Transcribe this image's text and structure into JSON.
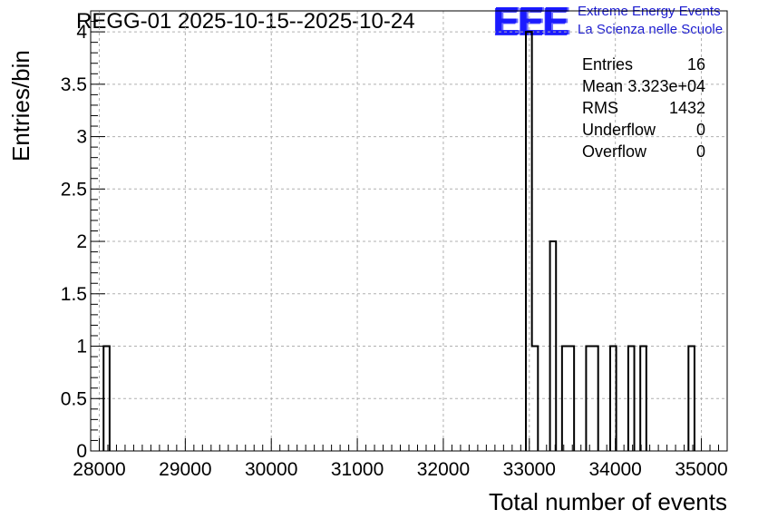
{
  "header": {
    "title": "REGG-01 2025-10-15--2025-10-24",
    "logo_text": "EEE",
    "logo_line1": "Extreme Energy Events",
    "logo_line2": "La Scienza nelle Scuole"
  },
  "stats_box": [
    {
      "label": "Entries",
      "value": "16"
    },
    {
      "label": "Mean",
      "value": "3.323e+04"
    },
    {
      "label": "RMS",
      "value": "1432"
    },
    {
      "label": "Underflow",
      "value": "0"
    },
    {
      "label": "Overflow",
      "value": "0"
    }
  ],
  "colors": {
    "logo": "#1a1aff",
    "grid": "#b0b0b0",
    "histogram": "#000000"
  },
  "chart_data": {
    "type": "bar",
    "title": "REGG-01 2025-10-15--2025-10-24",
    "xlabel": "Total number of events",
    "ylabel": "Entries/bin",
    "xlim": [
      27900,
      35300
    ],
    "ylim": [
      0,
      4.2
    ],
    "grid": true,
    "bin_width": 70,
    "x_ticks": [
      28000,
      29000,
      30000,
      31000,
      32000,
      33000,
      34000,
      35000
    ],
    "x_tick_labels": [
      "28000",
      "29000",
      "30000",
      "31000",
      "32000",
      "33000",
      "34000",
      "35000"
    ],
    "y_ticks": [
      0,
      0.5,
      1,
      1.5,
      2,
      2.5,
      3,
      3.5,
      4
    ],
    "y_tick_labels": [
      "0",
      "0.5",
      "1",
      "1.5",
      "2",
      "2.5",
      "3",
      "3.5",
      "4"
    ],
    "bins": [
      {
        "low": 28050,
        "high": 28120,
        "count": 1
      },
      {
        "low": 32960,
        "high": 33030,
        "count": 4
      },
      {
        "low": 33030,
        "high": 33100,
        "count": 1
      },
      {
        "low": 33240,
        "high": 33310,
        "count": 2
      },
      {
        "low": 33380,
        "high": 33450,
        "count": 1
      },
      {
        "low": 33450,
        "high": 33520,
        "count": 1
      },
      {
        "low": 33660,
        "high": 33730,
        "count": 1
      },
      {
        "low": 33730,
        "high": 33800,
        "count": 1
      },
      {
        "low": 33940,
        "high": 34010,
        "count": 1
      },
      {
        "low": 34150,
        "high": 34220,
        "count": 1
      },
      {
        "low": 34290,
        "high": 34360,
        "count": 1
      },
      {
        "low": 34850,
        "high": 34920,
        "count": 1
      }
    ]
  }
}
